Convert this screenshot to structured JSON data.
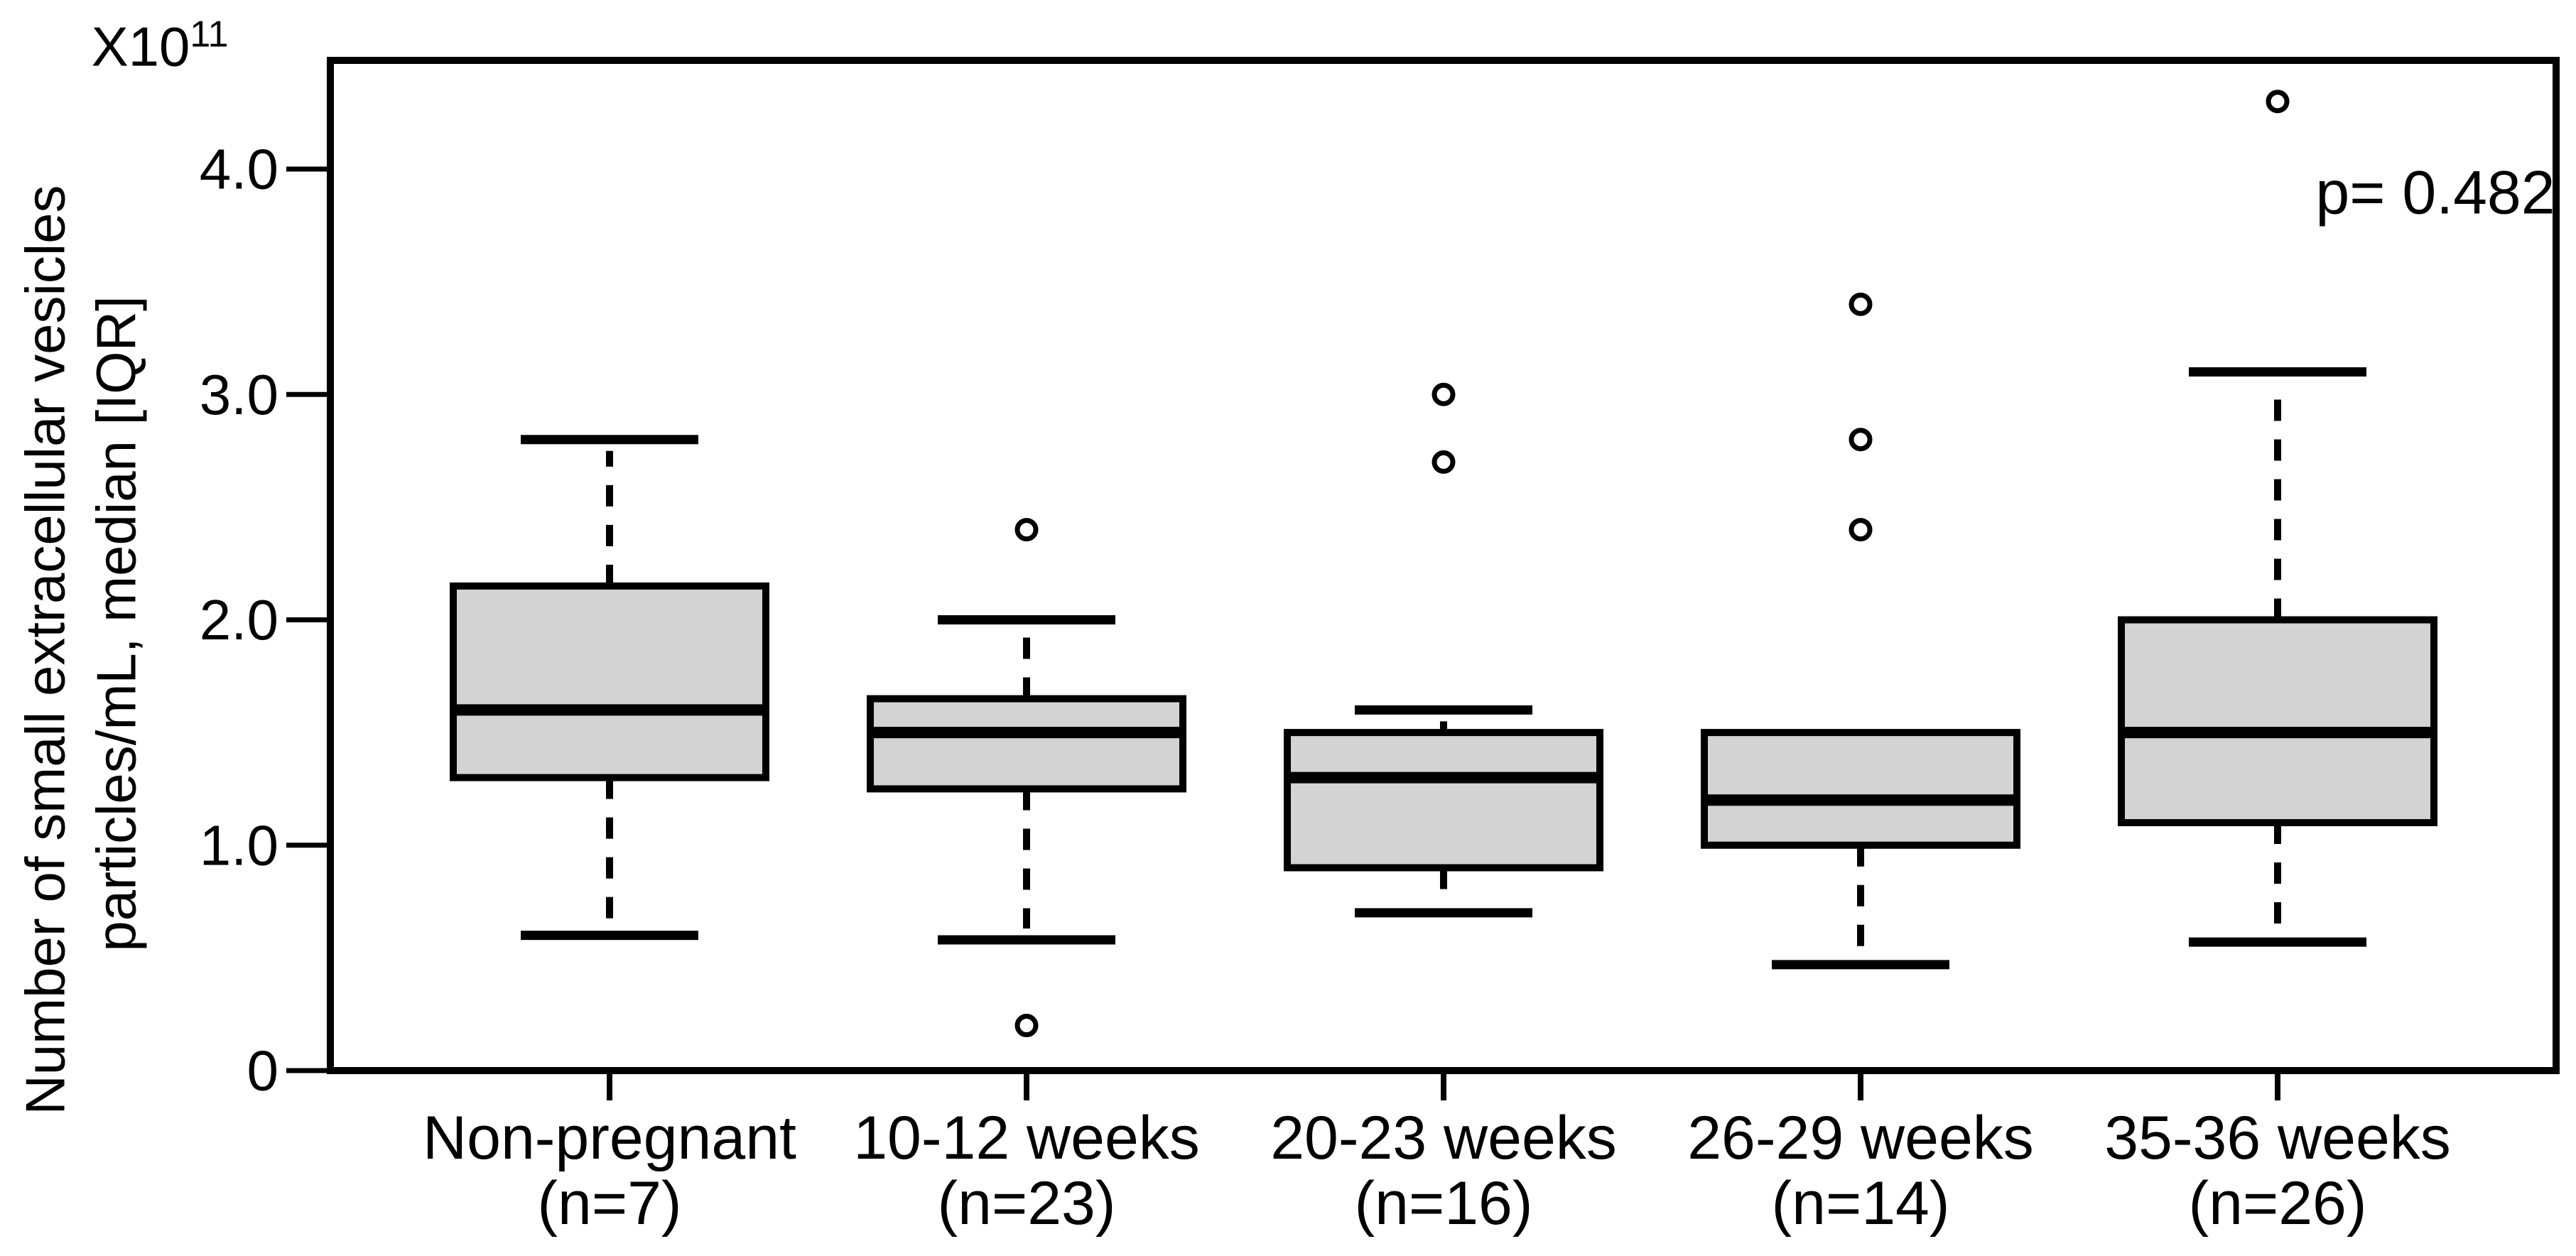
{
  "figure": {
    "background": "#ffffff",
    "scale_base": "X10",
    "scale_exponent": "11",
    "ylabel_line1": "Number of small extracellular vesicles",
    "ylabel_line2": "particles/mL, median [IQR]",
    "p_annotation": "p= 0.482"
  },
  "chart_data": {
    "type": "box",
    "title": "",
    "ylabel": "Number of small extracellular vesicles particles/mL, median [IQR]",
    "y_unit_scale": "X10^11",
    "annotation": "p= 0.482",
    "grid": false,
    "legend_position": "none",
    "ylim": [
      0,
      4.48
    ],
    "y_ticks": [
      0,
      1.0,
      2.0,
      3.0,
      4.0
    ],
    "y_tick_labels": [
      "0",
      "1.0",
      "2.0",
      "3.0",
      "4.0"
    ],
    "categories": [
      "Non-pregnant",
      "10-12 weeks",
      "20-23 weeks",
      "26-29 weeks",
      "35-36 weeks"
    ],
    "sample_size_labels": [
      "(n=7)",
      "(n=23)",
      "(n=16)",
      "(n=14)",
      "(n=26)"
    ],
    "boxes": [
      {
        "group": "Non-pregnant",
        "n": 7,
        "whisker_low": 0.6,
        "q1": 1.3,
        "median": 1.6,
        "q3": 2.15,
        "whisker_high": 2.8,
        "outliers": []
      },
      {
        "group": "10-12 weeks",
        "n": 23,
        "whisker_low": 0.58,
        "q1": 1.25,
        "median": 1.5,
        "q3": 1.65,
        "whisker_high": 2.0,
        "outliers": [
          2.4,
          0.2
        ]
      },
      {
        "group": "20-23 weeks",
        "n": 16,
        "whisker_low": 0.7,
        "q1": 0.9,
        "median": 1.3,
        "q3": 1.5,
        "whisker_high": 1.6,
        "outliers": [
          3.0,
          2.7
        ]
      },
      {
        "group": "26-29 weeks",
        "n": 14,
        "whisker_low": 0.47,
        "q1": 1.0,
        "median": 1.2,
        "q3": 1.5,
        "whisker_high": 1.5,
        "outliers": [
          3.4,
          2.8,
          2.4
        ]
      },
      {
        "group": "35-36 weeks",
        "n": 26,
        "whisker_low": 0.57,
        "q1": 1.1,
        "median": 1.5,
        "q3": 2.0,
        "whisker_high": 3.1,
        "outliers": [
          4.3
        ]
      }
    ],
    "box_fill": "#d3d3d3",
    "stroke_color": "#000000",
    "background": "#ffffff"
  }
}
